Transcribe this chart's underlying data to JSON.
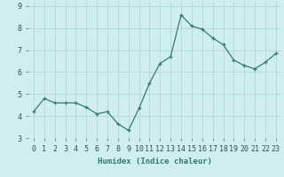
{
  "x": [
    0,
    1,
    2,
    3,
    4,
    5,
    6,
    7,
    8,
    9,
    10,
    11,
    12,
    13,
    14,
    15,
    16,
    17,
    18,
    19,
    20,
    21,
    22,
    23
  ],
  "y": [
    4.2,
    4.8,
    4.6,
    4.6,
    4.6,
    4.4,
    4.1,
    4.2,
    3.65,
    3.35,
    4.35,
    5.5,
    6.4,
    6.7,
    8.6,
    8.1,
    7.95,
    7.55,
    7.25,
    6.55,
    6.3,
    6.15,
    6.45,
    6.85
  ],
  "line_color": "#2e7d6e",
  "marker": "+",
  "marker_size": 3,
  "background_color": "#d0eeee",
  "grid_color": "#aad4d4",
  "xlabel": "Humidex (Indice chaleur)",
  "ylabel": "",
  "title": "",
  "ylim": [
    3.0,
    9.2
  ],
  "xlim": [
    -0.5,
    23.5
  ],
  "yticks": [
    3,
    4,
    5,
    6,
    7,
    8,
    9
  ],
  "xticks": [
    0,
    1,
    2,
    3,
    4,
    5,
    6,
    7,
    8,
    9,
    10,
    11,
    12,
    13,
    14,
    15,
    16,
    17,
    18,
    19,
    20,
    21,
    22,
    23
  ],
  "xlabel_fontsize": 6.5,
  "tick_fontsize": 6.0,
  "linewidth": 0.9,
  "markeredgewidth": 0.9
}
